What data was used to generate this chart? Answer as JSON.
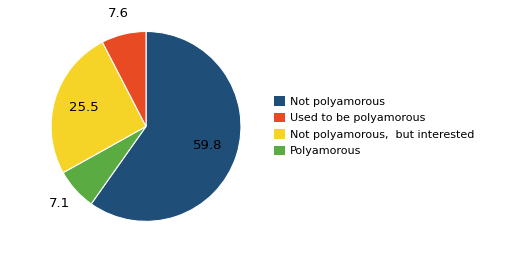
{
  "labels": [
    "Not polyamorous",
    "Polyamorous",
    "Not polyamorous, but interested",
    "Used to be polyamorous"
  ],
  "values": [
    59.8,
    7.1,
    25.5,
    7.6
  ],
  "colors": [
    "#1F4E79",
    "#5AAB41",
    "#F5D327",
    "#E84B23"
  ],
  "display_values": [
    "59.8",
    "7.1",
    "25.5",
    "7.6"
  ],
  "legend_labels": [
    "Not polyamorous",
    "Used to be polyamorous",
    "Not polyamorous,  but interested",
    "Polyamorous"
  ],
  "legend_colors": [
    "#1F4E79",
    "#E84B23",
    "#F5D327",
    "#5AAB41"
  ],
  "startangle": 90,
  "background_color": "#ffffff",
  "text_color": "#000000",
  "fontsize": 10,
  "label_fontsize": 9.5
}
